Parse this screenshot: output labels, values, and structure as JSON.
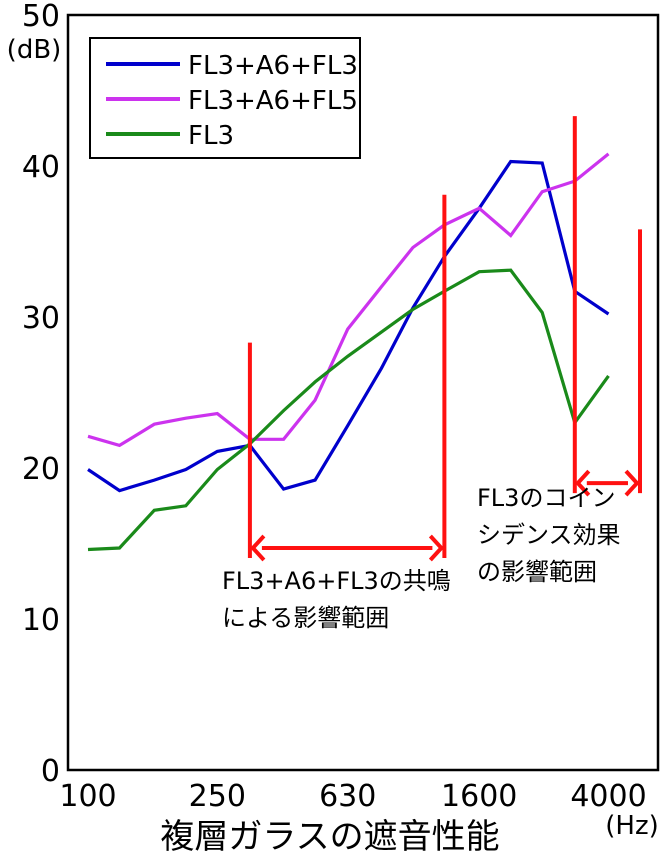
{
  "chart_data": {
    "type": "line",
    "title": "",
    "xlabel": "複層ガラスの遮音性能",
    "x_unit": "(Hz)",
    "ylabel": "",
    "y_unit": "(dB)",
    "ylim": [
      0,
      50
    ],
    "yticks": [
      0,
      10,
      20,
      30,
      40,
      50
    ],
    "x_log_scale": true,
    "x": [
      100,
      125,
      160,
      200,
      250,
      315,
      400,
      500,
      630,
      800,
      1000,
      1250,
      1600,
      2000,
      2500,
      3150,
      4000,
      5000
    ],
    "xticks": [
      "100",
      "250",
      "630",
      "1600",
      "4000"
    ],
    "xtick_values": [
      100,
      250,
      630,
      1600,
      4000
    ],
    "grid": false,
    "legend_position": "top-left",
    "series": [
      {
        "name": "FL3+A6+FL3",
        "color": "#0000cc",
        "values": [
          19.9,
          18.5,
          19.2,
          19.9,
          21.1,
          21.5,
          18.6,
          19.2,
          22.8,
          26.6,
          30.6,
          34.0,
          37.2,
          40.3,
          40.2,
          31.7,
          30.2,
          null
        ]
      },
      {
        "name": "FL3+A6+FL5",
        "color": "#cc33ee",
        "values": [
          22.1,
          21.5,
          22.9,
          23.3,
          23.6,
          21.9,
          21.9,
          24.5,
          29.2,
          32.0,
          34.6,
          36.1,
          37.2,
          35.4,
          38.3,
          39.0,
          40.8,
          null
        ]
      },
      {
        "name": "FL3",
        "color": "#1a8a1a",
        "values": [
          14.6,
          14.7,
          17.2,
          17.5,
          19.9,
          21.6,
          23.8,
          25.7,
          27.4,
          29.0,
          30.5,
          31.7,
          33.0,
          33.1,
          30.3,
          23.0,
          26.1,
          null
        ]
      }
    ],
    "annotations": [
      {
        "lines": [
          "FL3+A6+FL3の共鳴",
          "による影響範囲"
        ],
        "color": "#ff1111",
        "range_x": [
          315,
          1250
        ],
        "marker_top_y": [
          28.3,
          38.1
        ],
        "arrow_y": 14.7
      },
      {
        "lines": [
          "FL3のコイン",
          "シデンス効果",
          "の影響範囲"
        ],
        "color": "#ff1111",
        "range_x": [
          3150,
          5000
        ],
        "marker_top_y": [
          43.3,
          35.8
        ],
        "arrow_y": 19.0
      }
    ]
  }
}
